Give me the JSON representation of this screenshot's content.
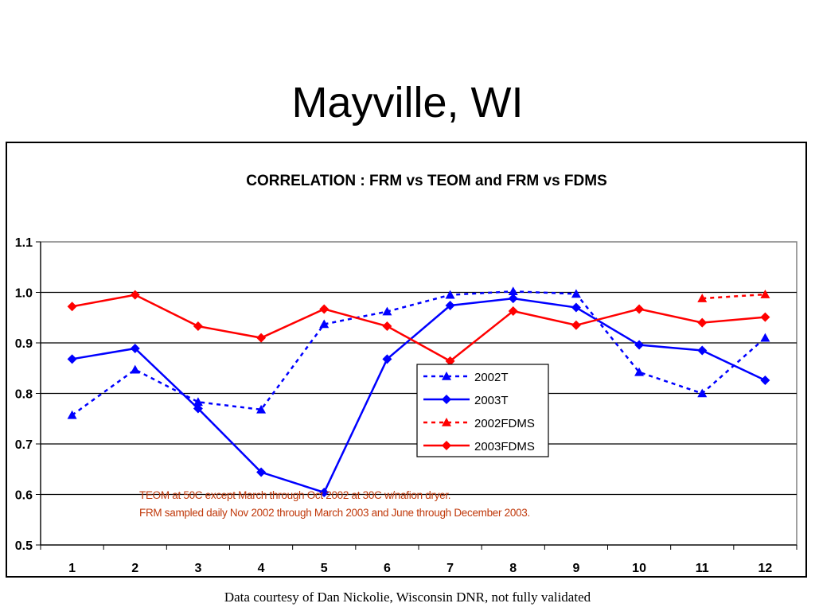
{
  "slide": {
    "title": "Mayville, WI",
    "footer": "Data courtesy of Dan Nickolie, Wisconsin DNR, not fully validated"
  },
  "chart_data": {
    "type": "line",
    "title": "CORRELATION : FRM vs TEOM and FRM vs FDMS",
    "xlabel": "",
    "ylabel": "",
    "categories": [
      "1",
      "2",
      "3",
      "4",
      "5",
      "6",
      "7",
      "8",
      "9",
      "10",
      "11",
      "12"
    ],
    "ylim": [
      0.5,
      1.1
    ],
    "yticks": [
      "0.5",
      "0.6",
      "0.7",
      "0.8",
      "0.9",
      "1.0",
      "1.1"
    ],
    "grid": "horizontal",
    "legend_position": "center",
    "series": [
      {
        "name": "2002T",
        "color": "#0000ff",
        "dash": "dashed",
        "marker": "triangle",
        "values": [
          0.757,
          0.847,
          0.783,
          0.768,
          0.937,
          0.962,
          0.995,
          1.002,
          0.997,
          0.842,
          0.8,
          0.91
        ]
      },
      {
        "name": "2003T",
        "color": "#0000ff",
        "dash": "solid",
        "marker": "diamond",
        "values": [
          0.868,
          0.889,
          0.77,
          0.644,
          0.604,
          0.868,
          0.974,
          0.988,
          0.97,
          0.896,
          0.885,
          0.826
        ]
      },
      {
        "name": "2002FDMS",
        "color": "#ff0000",
        "dash": "dashed",
        "marker": "triangle",
        "values": [
          null,
          null,
          null,
          null,
          null,
          null,
          null,
          null,
          null,
          null,
          0.988,
          0.996
        ]
      },
      {
        "name": "2003FDMS",
        "color": "#ff0000",
        "dash": "solid",
        "marker": "diamond",
        "values": [
          0.972,
          0.995,
          0.933,
          0.91,
          0.967,
          0.933,
          0.864,
          0.963,
          0.935,
          0.967,
          0.94,
          0.951
        ]
      }
    ],
    "annotations": [
      "TEOM at 50C except March through Oct 2002 at 30C w/nafion dryer.",
      "FRM sampled daily Nov 2002 through March 2003 and June through December 2003."
    ],
    "annotation_color": "#c0390b"
  }
}
